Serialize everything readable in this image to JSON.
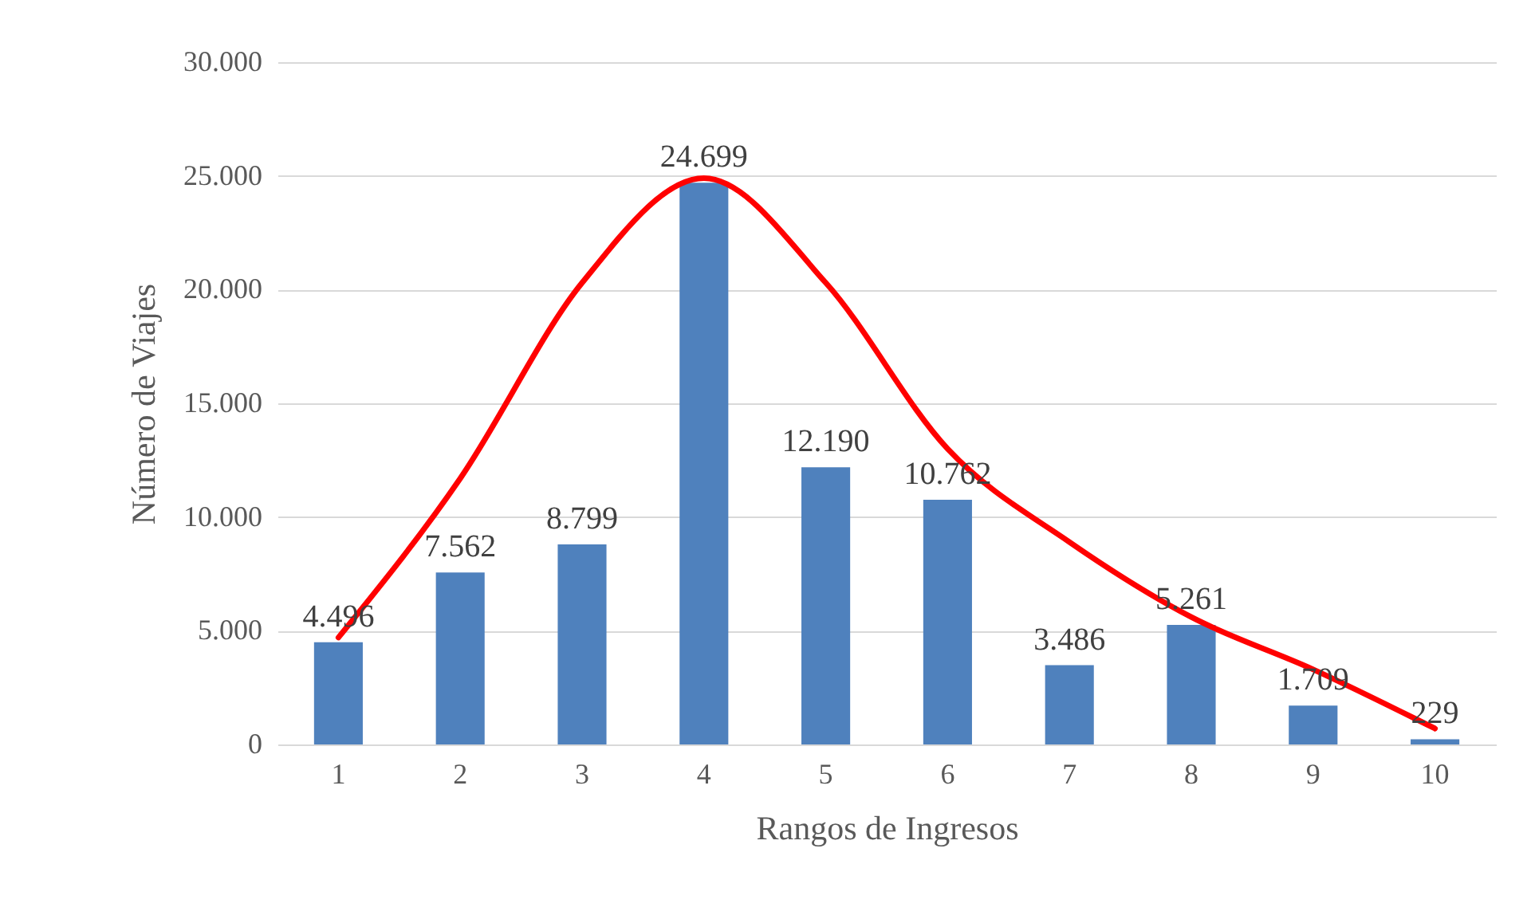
{
  "chart_data": {
    "type": "bar",
    "xlabel": "Rangos de Ingresos",
    "ylabel": "Número de Viajes",
    "categories": [
      "1",
      "2",
      "3",
      "4",
      "5",
      "6",
      "7",
      "8",
      "9",
      "10"
    ],
    "series": [
      {
        "color": "#4f81bd",
        "values": [
          4496,
          7562,
          8799,
          24699,
          12190,
          10762,
          3486,
          5261,
          1709,
          229
        ],
        "value_labels": [
          "4.496",
          "7.562",
          "8.799",
          "24.699",
          "12.190",
          "10.762",
          "3.486",
          "5.261",
          "1.709",
          "229"
        ]
      },
      {
        "type": "line",
        "color": "#ff0000",
        "values": [
          4700,
          11700,
          20300,
          24900,
          20300,
          13000,
          8900,
          5600,
          3300,
          700
        ]
      }
    ],
    "ylim": [
      0,
      30000
    ],
    "yticks": [
      {
        "value": 0,
        "label": "0"
      },
      {
        "value": 5000,
        "label": "5.000"
      },
      {
        "value": 10000,
        "label": "10.000"
      },
      {
        "value": 15000,
        "label": "15.000"
      },
      {
        "value": 20000,
        "label": "20.000"
      },
      {
        "value": 25000,
        "label": "25.000"
      },
      {
        "value": 30000,
        "label": "30.000"
      }
    ],
    "grid": "y",
    "marker": "none",
    "line_style": "solid"
  }
}
